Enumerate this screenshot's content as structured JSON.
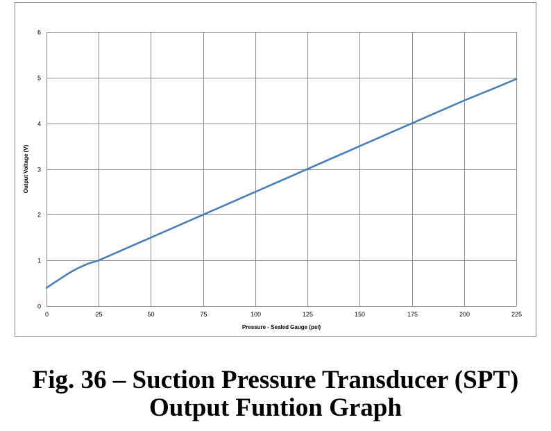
{
  "caption": {
    "line1": "Fig. 36 – Suction Pressure Transducer (SPT)",
    "line2": "Output Funtion Graph"
  },
  "colors": {
    "series_line": "#4a7ebb",
    "gridline": "#8a8a8a",
    "frame": "#8a8a8a"
  },
  "chart_data": {
    "type": "line",
    "title": "",
    "xlabel": "Pressure - Sealed Gauge (psi)",
    "ylabel": "Output Voltage (V)",
    "xlim": [
      0,
      225
    ],
    "ylim": [
      0,
      6
    ],
    "xticks": [
      0,
      25,
      50,
      75,
      100,
      125,
      150,
      175,
      200,
      225
    ],
    "yticks": [
      0,
      1,
      2,
      3,
      4,
      5,
      6
    ],
    "grid": true,
    "legend": "none",
    "series": [
      {
        "x": [
          0,
          5,
          10,
          15,
          20,
          25,
          37.5,
          50,
          62.5,
          75,
          87.5,
          100,
          112.5,
          125,
          137.5,
          150,
          162.5,
          175,
          187.5,
          200,
          212.5,
          225
        ],
        "y": [
          0.4,
          0.55,
          0.7,
          0.83,
          0.93,
          1.0,
          1.25,
          1.5,
          1.75,
          2.0,
          2.25,
          2.5,
          2.75,
          3.0,
          3.25,
          3.5,
          3.75,
          4.0,
          4.25,
          4.5,
          4.73,
          4.97
        ]
      }
    ]
  }
}
